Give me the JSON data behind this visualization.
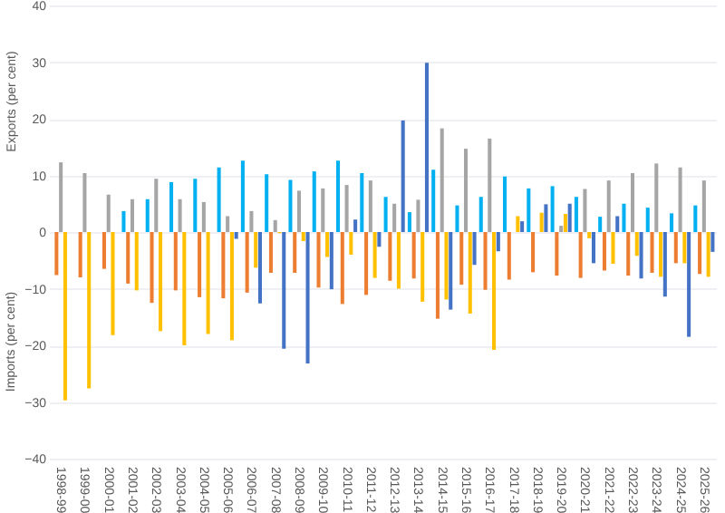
{
  "chart_data": {
    "type": "bar",
    "ylabel": "Exports (per cent)",
    "annotations": [
      "Imports (per cent)"
    ],
    "categories": [
      "1998-99",
      "1999-00",
      "2000-01",
      "2001-02",
      "2002-03",
      "2003-04",
      "2004-05",
      "2005-06",
      "2006-07",
      "2007-08",
      "2008-09",
      "2009-10",
      "2010-11",
      "2011-12",
      "2012-13",
      "2013-14",
      "2014-15",
      "2015-16",
      "2016-17",
      "2017-18",
      "2018-19",
      "2019-20",
      "2020-21",
      "2021-22",
      "2022-23",
      "2023-24",
      "2024-25",
      "2025-26"
    ],
    "series": [
      {
        "color": "#00b0f0",
        "values": [
          null,
          null,
          null,
          3.7,
          5.8,
          8.8,
          9.4,
          11.4,
          12.6,
          10.2,
          9.2,
          10.7,
          12.6,
          10.4,
          6.2,
          3.5,
          11.0,
          4.7,
          6.2,
          9.8,
          7.7,
          8.1,
          6.2,
          2.7,
          5.0,
          4.3,
          3.3,
          4.7
        ]
      },
      {
        "color": "#ed7d31",
        "values": [
          -7.6,
          -8.0,
          -6.5,
          -9.1,
          -12.5,
          -10.3,
          -11.5,
          -11.7,
          -10.7,
          -7.2,
          -7.2,
          -9.8,
          -12.7,
          -11.1,
          -8.6,
          -8.2,
          -15.3,
          -9.3,
          -10.2,
          -8.4,
          -7.1,
          -7.7,
          -8.1,
          -6.8,
          -7.7,
          -7.2,
          -5.5,
          -7.4
        ]
      },
      {
        "color": "#a5a5a5",
        "values": [
          12.3,
          10.4,
          6.6,
          5.8,
          9.4,
          5.8,
          5.3,
          2.8,
          3.7,
          2.1,
          7.3,
          7.7,
          8.3,
          9.1,
          5.0,
          5.7,
          18.3,
          14.7,
          16.5,
          null,
          null,
          1.1,
          7.6,
          9.1,
          10.4,
          12.1,
          11.4,
          9.1
        ]
      },
      {
        "color": "#ffc000",
        "values": [
          -29.7,
          -27.6,
          -18.2,
          -10.3,
          -17.5,
          -20.0,
          -18.0,
          -19.1,
          -6.3,
          -0.2,
          -1.6,
          -4.4,
          -4.0,
          -8.1,
          -10.0,
          -12.3,
          -11.9,
          -14.4,
          -20.8,
          2.8,
          3.4,
          3.2,
          -1.1,
          -5.6,
          -4.2,
          -7.9,
          -5.5,
          -7.9
        ]
      },
      {
        "color": "#4472c4",
        "values": [
          null,
          null,
          null,
          null,
          null,
          null,
          null,
          -1.2,
          -12.6,
          -20.6,
          -23.2,
          -10.1,
          2.2,
          -2.6,
          19.7,
          29.9,
          -13.7,
          -5.8,
          -3.4,
          1.9,
          4.9,
          5.0,
          -5.5,
          2.8,
          -8.2,
          -11.4,
          -18.5,
          -3.5
        ]
      }
    ],
    "ylim": [
      -40,
      40
    ],
    "yticks": [
      -40,
      -30,
      -20,
      -10,
      0,
      10,
      20,
      30,
      40
    ],
    "grid": "y"
  }
}
